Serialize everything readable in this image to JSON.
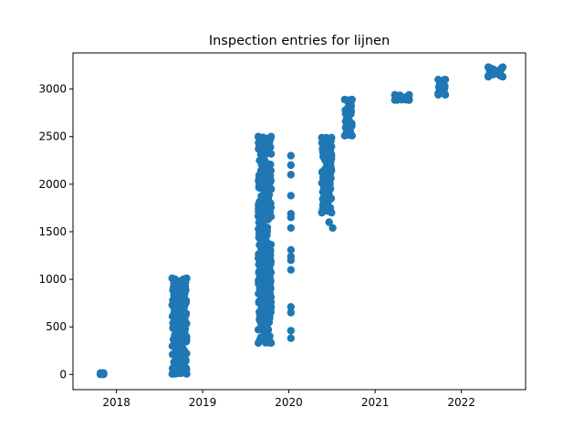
{
  "chart_data": {
    "type": "scatter",
    "title": "Inspection entries for lijnen",
    "xlabel": "",
    "ylabel": "",
    "xlim": [
      "2017-07-01",
      "2022-09-30"
    ],
    "ylim": [
      -160,
      3380
    ],
    "x_ticks": [
      "2018",
      "2019",
      "2020",
      "2021",
      "2022"
    ],
    "y_ticks": [
      "0",
      "500",
      "1000",
      "1500",
      "2000",
      "2500",
      "3000"
    ],
    "grid": false,
    "marker_color": "#1f77b4",
    "clusters": [
      {
        "x_start": "2017-10-25",
        "x_end": "2017-11-08",
        "y_min": 0,
        "y_max": 15
      },
      {
        "x_start": "2018-08-25",
        "x_end": "2018-10-25",
        "y_min": 5,
        "y_max": 1010
      },
      {
        "x_start": "2019-08-25",
        "x_end": "2019-10-18",
        "y_min": 330,
        "y_max": 2500
      },
      {
        "x_start": "2020-05-20",
        "x_end": "2020-06-30",
        "y_min": 1700,
        "y_max": 2490
      },
      {
        "x_start": "2020-08-25",
        "x_end": "2020-09-25",
        "y_min": 2510,
        "y_max": 2890
      },
      {
        "x_start": "2021-03-25",
        "x_end": "2021-05-25",
        "y_min": 2885,
        "y_max": 2940
      },
      {
        "x_start": "2021-09-25",
        "x_end": "2021-10-25",
        "y_min": 2940,
        "y_max": 3100
      },
      {
        "x_start": "2022-04-25",
        "x_end": "2022-06-25",
        "y_min": 3130,
        "y_max": 3230
      }
    ],
    "points": [
      {
        "x": "2020-01-10",
        "y": 2300
      },
      {
        "x": "2020-01-10",
        "y": 2200
      },
      {
        "x": "2020-01-10",
        "y": 2100
      },
      {
        "x": "2020-01-10",
        "y": 1880
      },
      {
        "x": "2020-01-10",
        "y": 1690
      },
      {
        "x": "2020-01-10",
        "y": 1650
      },
      {
        "x": "2020-01-10",
        "y": 1540
      },
      {
        "x": "2020-01-10",
        "y": 1310
      },
      {
        "x": "2020-01-10",
        "y": 1240
      },
      {
        "x": "2020-01-10",
        "y": 1200
      },
      {
        "x": "2020-01-10",
        "y": 1100
      },
      {
        "x": "2020-01-10",
        "y": 710
      },
      {
        "x": "2020-01-10",
        "y": 650
      },
      {
        "x": "2020-01-10",
        "y": 460
      },
      {
        "x": "2020-01-10",
        "y": 380
      },
      {
        "x": "2020-06-20",
        "y": 1600
      },
      {
        "x": "2020-07-05",
        "y": 1540
      },
      {
        "x": "2020-06-25",
        "y": 1750
      }
    ]
  }
}
